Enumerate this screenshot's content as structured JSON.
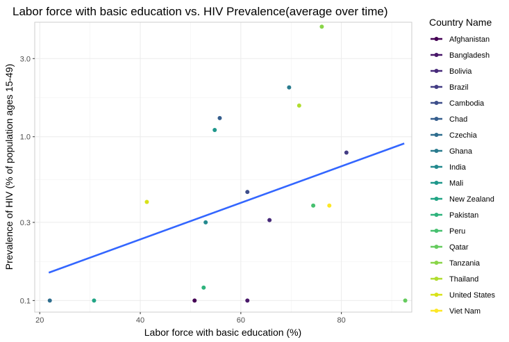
{
  "chart_data": {
    "type": "scatter",
    "title": "Labor force with basic education vs. HIV Prevalence(average over time)",
    "xlabel": "Labor force with basic education (%)",
    "ylabel": "Prevalence of HIV (% of population ages 15-49)",
    "xlim": [
      19,
      94
    ],
    "ylim": [
      0.085,
      5.0
    ],
    "yscale": "log",
    "xticks": [
      20,
      40,
      60,
      80
    ],
    "yticks": [
      0.1,
      0.3,
      1.0,
      3.0
    ],
    "ytick_labels": [
      "0.1",
      "0.3",
      "1.0",
      "3.0"
    ],
    "grid": true,
    "legend_title": "Country Name",
    "legend_position": "right",
    "series": [
      {
        "name": "Afghanistan",
        "color": "#440154",
        "points": [
          [
            50.8,
            0.1
          ]
        ]
      },
      {
        "name": "Bangladesh",
        "color": "#481769",
        "points": [
          [
            61.3,
            0.1
          ]
        ]
      },
      {
        "name": "Bolivia",
        "color": "#472A7A",
        "points": [
          [
            65.7,
            0.31
          ]
        ]
      },
      {
        "name": "Brazil",
        "color": "#433D84",
        "points": [
          [
            81.0,
            0.8
          ]
        ]
      },
      {
        "name": "Cambodia",
        "color": "#3D4E8A",
        "points": [
          [
            61.3,
            0.46
          ]
        ]
      },
      {
        "name": "Chad",
        "color": "#355E8D",
        "points": [
          [
            55.8,
            1.3
          ]
        ]
      },
      {
        "name": "Czechia",
        "color": "#2E6D8E",
        "points": [
          [
            22.0,
            0.1
          ]
        ]
      },
      {
        "name": "Ghana",
        "color": "#297B8E",
        "points": [
          [
            69.6,
            2.0
          ]
        ]
      },
      {
        "name": "India",
        "color": "#23898E",
        "points": [
          [
            53.0,
            0.3
          ]
        ]
      },
      {
        "name": "Mali",
        "color": "#1F978B",
        "points": [
          [
            54.8,
            1.1
          ]
        ]
      },
      {
        "name": "New Zealand",
        "color": "#21A585",
        "points": [
          [
            30.8,
            0.1
          ]
        ]
      },
      {
        "name": "Pakistan",
        "color": "#2EB37C",
        "points": [
          [
            52.6,
            0.12
          ]
        ]
      },
      {
        "name": "Peru",
        "color": "#46C06F",
        "points": [
          [
            74.4,
            0.38
          ]
        ]
      },
      {
        "name": "Qatar",
        "color": "#65CB5E",
        "points": [
          [
            92.7,
            0.1
          ]
        ]
      },
      {
        "name": "Tanzania",
        "color": "#89D548",
        "points": [
          [
            76.1,
            4.7
          ]
        ]
      },
      {
        "name": "Thailand",
        "color": "#B0DD2F",
        "points": [
          [
            71.6,
            1.55
          ]
        ]
      },
      {
        "name": "United States",
        "color": "#D8E219",
        "points": [
          [
            41.3,
            0.4
          ]
        ]
      },
      {
        "name": "Viet Nam",
        "color": "#FDE725",
        "points": [
          [
            77.6,
            0.38
          ]
        ]
      }
    ],
    "trend_line": {
      "color": "#3366FF",
      "x": [
        21.8,
        92.5
      ],
      "y": [
        0.148,
        0.91
      ]
    }
  }
}
